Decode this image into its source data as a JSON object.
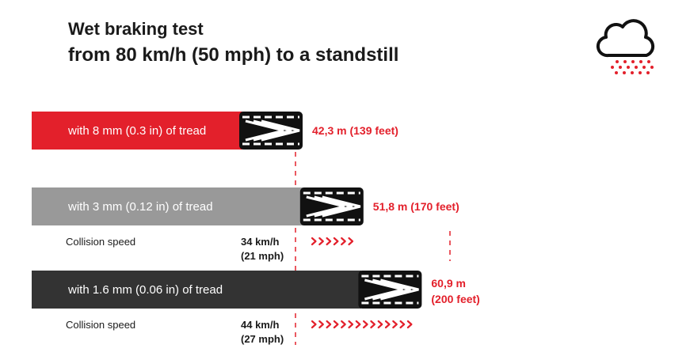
{
  "header": {
    "title": "Wet braking test",
    "subtitle": "from 80 km/h (50 mph) to a standstill"
  },
  "icons": {
    "weather": "rain-cloud-icon",
    "tire": "tire-tread-icon"
  },
  "colors": {
    "accent": "#e3202b",
    "bar_8mm": "#e3202b",
    "bar_3mm": "#999999",
    "bar_1_6mm": "#333333",
    "text_dark": "#1a1a1a"
  },
  "chart_data": {
    "type": "bar",
    "orientation": "horizontal",
    "title": "Wet braking test",
    "subtitle": "from 80 km/h (50 mph) to a standstill",
    "unit": "m",
    "categories": [
      "with 8 mm (0.3 in) of tread",
      "with 3 mm (0.12 in) of tread",
      "with 1.6 mm (0.06 in) of tread"
    ],
    "values": [
      42.3,
      51.8,
      60.9
    ],
    "value_labels": [
      "42,3 m (139 feet)",
      "51,8 m (170 feet)",
      "60,9 m (200 feet)"
    ],
    "value_labels_split": [
      [
        "42,3 m (139 feet)"
      ],
      [
        "51,8 m (170 feet)"
      ],
      [
        "60,9 m",
        "(200 feet)"
      ]
    ],
    "collision_speeds": [
      {
        "label": "Collision speed",
        "speed_lines": [
          "34 km/h",
          "(21 mph)"
        ],
        "from": 42.3,
        "to": 51.8
      },
      {
        "label": "Collision speed",
        "speed_lines": [
          "44 km/h",
          "(27 mph)"
        ],
        "from": 42.3,
        "to": 60.9
      }
    ]
  }
}
